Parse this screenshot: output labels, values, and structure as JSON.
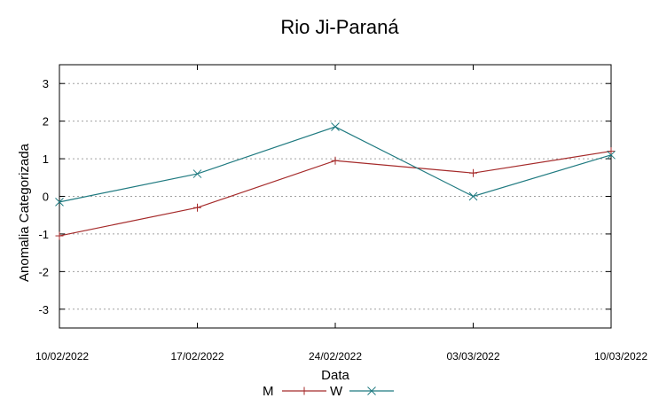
{
  "chart_data": {
    "type": "line",
    "title": "Rio Ji-Paraná",
    "xlabel": "Data",
    "ylabel": "Anomalia Categorizada",
    "categories": [
      "10/02/2022",
      "17/02/2022",
      "24/02/2022",
      "03/03/2022",
      "10/03/2022"
    ],
    "ylim": [
      -3.5,
      3.5
    ],
    "yticks": [
      3,
      2,
      1,
      0,
      -1,
      -2,
      -3
    ],
    "grid": true,
    "legend": "bottom",
    "series": [
      {
        "name": "M",
        "values": [
          -1.05,
          -0.3,
          0.95,
          0.62,
          1.2
        ],
        "color": "#a52a2a",
        "marker": "plus"
      },
      {
        "name": "W",
        "values": [
          -0.15,
          0.6,
          1.85,
          0.0,
          1.1
        ],
        "color": "#1f7a80",
        "marker": "cross"
      }
    ]
  }
}
